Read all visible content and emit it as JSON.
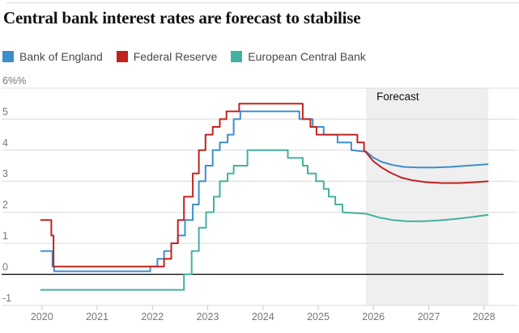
{
  "page": {
    "title": "Central bank interest rates are forecast to stabilise"
  },
  "legend": [
    {
      "label": "Bank of England",
      "color": "#3f8ecb"
    },
    {
      "label": "Federal Reserve",
      "color": "#c0231f"
    },
    {
      "label": "European Central Bank",
      "color": "#43b1a0"
    }
  ],
  "colors": {
    "gridline": "#dcdcdc",
    "zero_line": "#121212",
    "tick": "#c8c8c8",
    "axis_text": "#767676",
    "forecast_box": "#efefef",
    "forecast_text": "#121212"
  },
  "chart_data": {
    "type": "line",
    "title": "Central bank interest rates are forecast to stabilise",
    "unit": "%",
    "ylim": [
      -1,
      6
    ],
    "xlim": [
      2019.27,
      2028.62
    ],
    "y_ticks": [
      {
        "value": 6,
        "label": "6%%"
      },
      {
        "value": 5,
        "label": "5"
      },
      {
        "value": 4,
        "label": "4"
      },
      {
        "value": 3,
        "label": "3"
      },
      {
        "value": 2,
        "label": "2"
      },
      {
        "value": 1,
        "label": "1"
      },
      {
        "value": 0,
        "label": "0"
      },
      {
        "value": -1,
        "label": "-1"
      }
    ],
    "x_ticks": [
      2020,
      2021,
      2022,
      2023,
      2024,
      2025,
      2026,
      2027,
      2028
    ],
    "forecast_region": {
      "start": 2025.865,
      "end": 2028.08,
      "label": "Forecast"
    },
    "series": [
      {
        "name": "Bank of England",
        "color": "#3f8ecb",
        "historical": [
          [
            2019.97,
            0.75
          ],
          [
            2020.19,
            0.25
          ],
          [
            2020.22,
            0.1
          ],
          [
            2021.96,
            0.25
          ],
          [
            2022.09,
            0.5
          ],
          [
            2022.21,
            0.75
          ],
          [
            2022.34,
            1.0
          ],
          [
            2022.46,
            1.25
          ],
          [
            2022.59,
            1.75
          ],
          [
            2022.73,
            2.25
          ],
          [
            2022.84,
            3.0
          ],
          [
            2022.96,
            3.5
          ],
          [
            2023.09,
            4.0
          ],
          [
            2023.22,
            4.25
          ],
          [
            2023.36,
            4.5
          ],
          [
            2023.47,
            5.0
          ],
          [
            2023.59,
            5.25
          ],
          [
            2024.66,
            5.0
          ],
          [
            2024.9,
            4.75
          ],
          [
            2025.1,
            4.5
          ],
          [
            2025.35,
            4.25
          ],
          [
            2025.6,
            4.0
          ]
        ],
        "forecast": [
          [
            2025.87,
            3.95
          ],
          [
            2026.0,
            3.76
          ],
          [
            2026.15,
            3.62
          ],
          [
            2026.35,
            3.52
          ],
          [
            2026.55,
            3.46
          ],
          [
            2026.8,
            3.44
          ],
          [
            2027.1,
            3.44
          ],
          [
            2027.4,
            3.46
          ],
          [
            2027.7,
            3.5
          ],
          [
            2028.08,
            3.55
          ]
        ]
      },
      {
        "name": "European Central Bank",
        "color": "#43b1a0",
        "historical": [
          [
            2019.97,
            -0.5
          ],
          [
            2022.57,
            0.0
          ],
          [
            2022.71,
            0.75
          ],
          [
            2022.84,
            1.5
          ],
          [
            2022.97,
            2.0
          ],
          [
            2023.11,
            2.5
          ],
          [
            2023.22,
            3.0
          ],
          [
            2023.36,
            3.25
          ],
          [
            2023.47,
            3.5
          ],
          [
            2023.72,
            4.0
          ],
          [
            2024.45,
            3.75
          ],
          [
            2024.72,
            3.5
          ],
          [
            2024.81,
            3.25
          ],
          [
            2024.96,
            3.0
          ],
          [
            2025.1,
            2.75
          ],
          [
            2025.19,
            2.5
          ],
          [
            2025.31,
            2.25
          ],
          [
            2025.44,
            2.0
          ]
        ],
        "forecast": [
          [
            2025.87,
            1.95
          ],
          [
            2026.1,
            1.83
          ],
          [
            2026.35,
            1.75
          ],
          [
            2026.6,
            1.71
          ],
          [
            2026.9,
            1.71
          ],
          [
            2027.2,
            1.74
          ],
          [
            2027.5,
            1.79
          ],
          [
            2027.8,
            1.85
          ],
          [
            2028.08,
            1.92
          ]
        ]
      },
      {
        "name": "Federal Reserve",
        "color": "#c0231f",
        "historical": [
          [
            2019.97,
            1.75
          ],
          [
            2020.17,
            1.25
          ],
          [
            2020.21,
            0.25
          ],
          [
            2022.21,
            0.5
          ],
          [
            2022.34,
            1.0
          ],
          [
            2022.46,
            1.75
          ],
          [
            2022.57,
            2.5
          ],
          [
            2022.73,
            3.25
          ],
          [
            2022.84,
            4.0
          ],
          [
            2022.96,
            4.5
          ],
          [
            2023.09,
            4.75
          ],
          [
            2023.22,
            5.0
          ],
          [
            2023.34,
            5.25
          ],
          [
            2023.57,
            5.5
          ],
          [
            2024.72,
            5.0
          ],
          [
            2024.86,
            4.75
          ],
          [
            2024.97,
            4.5
          ],
          [
            2025.71,
            4.25
          ],
          [
            2025.83,
            4.0
          ]
        ],
        "forecast": [
          [
            2025.88,
            3.9
          ],
          [
            2026.0,
            3.64
          ],
          [
            2026.15,
            3.44
          ],
          [
            2026.3,
            3.28
          ],
          [
            2026.5,
            3.12
          ],
          [
            2026.7,
            3.03
          ],
          [
            2026.95,
            2.97
          ],
          [
            2027.25,
            2.94
          ],
          [
            2027.55,
            2.94
          ],
          [
            2027.85,
            2.97
          ],
          [
            2028.08,
            3.0
          ]
        ]
      }
    ]
  }
}
